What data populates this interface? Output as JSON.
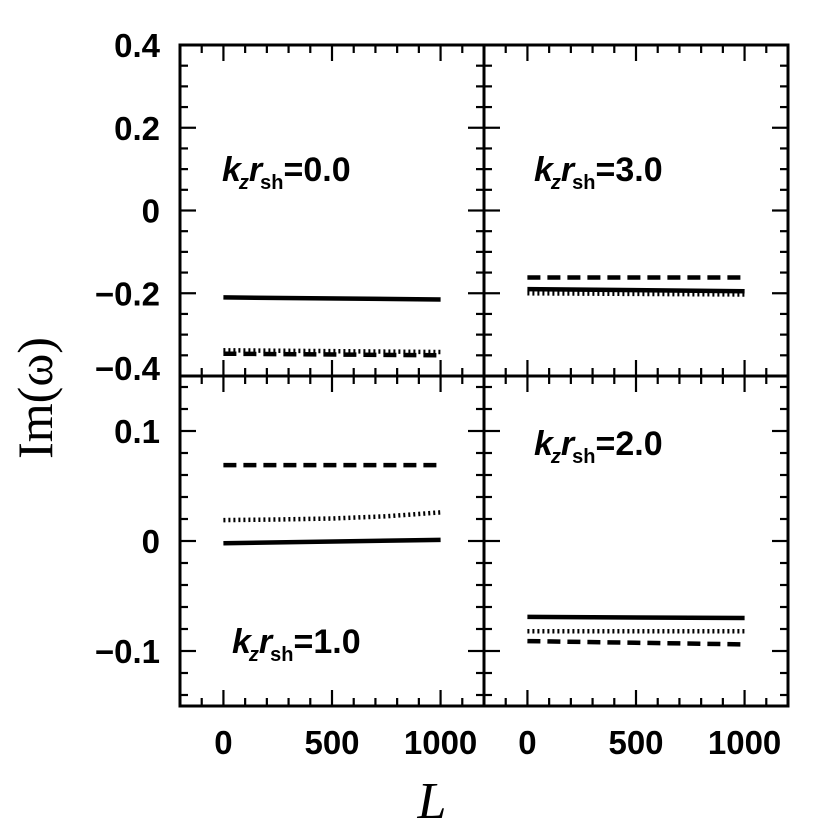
{
  "chart_data": {
    "type": "line",
    "xlabel": "L",
    "ylabel": "Im(ω)",
    "xlim": [
      -200,
      1200
    ],
    "xticks": [
      0,
      500,
      1000
    ],
    "panels": [
      {
        "id": "top-left",
        "annotation": {
          "k": "k",
          "z": "z",
          "r": "r",
          "sh": "sh",
          "value": "=0.0"
        },
        "ylim": [
          -0.4,
          0.4
        ],
        "yticks": [
          -0.4,
          -0.2,
          0,
          0.2,
          0.4
        ],
        "ytick_labels": [
          "−0.4",
          "−0.2",
          "0",
          "0.2",
          "0.4"
        ],
        "series": [
          {
            "style": "solid",
            "x": [
              0,
              1000
            ],
            "y": [
              -0.21,
              -0.215
            ]
          },
          {
            "style": "dotted",
            "x": [
              0,
              1000
            ],
            "y": [
              -0.338,
              -0.342
            ]
          },
          {
            "style": "dashed",
            "x": [
              0,
              1000
            ],
            "y": [
              -0.346,
              -0.35
            ]
          }
        ]
      },
      {
        "id": "top-right",
        "annotation": {
          "k": "k",
          "z": "z",
          "r": "r",
          "sh": "sh",
          "value": "=3.0"
        },
        "ylim": [
          -0.4,
          0.4
        ],
        "yticks": [
          -0.4,
          -0.2,
          0,
          0.2,
          0.4
        ],
        "series": [
          {
            "style": "dashed",
            "x": [
              0,
              1000
            ],
            "y": [
              -0.162,
              -0.162
            ]
          },
          {
            "style": "solid",
            "x": [
              0,
              1000
            ],
            "y": [
              -0.19,
              -0.195
            ]
          },
          {
            "style": "dotted",
            "x": [
              0,
              1000
            ],
            "y": [
              -0.2,
              -0.203
            ]
          }
        ]
      },
      {
        "id": "bottom-left",
        "annotation": {
          "k": "k",
          "z": "z",
          "r": "r",
          "sh": "sh",
          "value": "=1.0"
        },
        "ylim": [
          -0.15,
          0.15
        ],
        "yticks": [
          -0.1,
          0,
          0.1
        ],
        "ytick_labels": [
          "−0.1",
          "0",
          "0.1"
        ],
        "series": [
          {
            "style": "dashed",
            "x": [
              0,
              1000
            ],
            "y": [
              0.069,
              0.069
            ]
          },
          {
            "style": "dotted",
            "x": [
              0,
              250,
              500,
              750,
              1000
            ],
            "y": [
              0.019,
              0.0195,
              0.0205,
              0.0225,
              0.026
            ]
          },
          {
            "style": "solid",
            "x": [
              0,
              1000
            ],
            "y": [
              -0.002,
              0.001
            ]
          }
        ]
      },
      {
        "id": "bottom-right",
        "annotation": {
          "k": "k",
          "z": "z",
          "r": "r",
          "sh": "sh",
          "value": "=2.0"
        },
        "ylim": [
          -0.15,
          0.15
        ],
        "yticks": [
          -0.1,
          0,
          0.1
        ],
        "series": [
          {
            "style": "solid",
            "x": [
              0,
              1000
            ],
            "y": [
              -0.069,
              -0.07
            ]
          },
          {
            "style": "dotted",
            "x": [
              0,
              1000
            ],
            "y": [
              -0.082,
              -0.082
            ]
          },
          {
            "style": "dashed",
            "x": [
              0,
              1000
            ],
            "y": [
              -0.091,
              -0.094
            ]
          }
        ]
      }
    ],
    "xtick_labels": [
      "0",
      "500",
      "1000"
    ]
  }
}
